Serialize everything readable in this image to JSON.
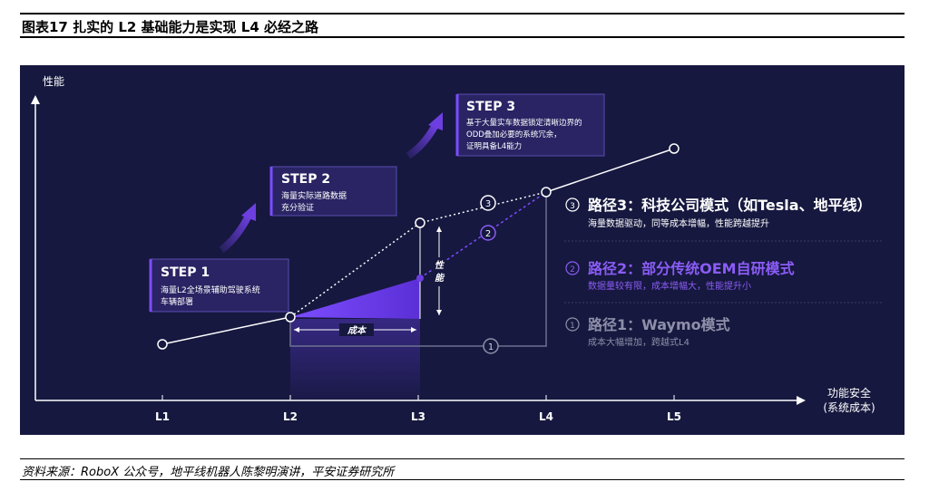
{
  "figure_title": "图表17   扎实的 L2 基础能力是实现 L4 必经之路",
  "source": "资料来源：RoboX 公众号，地平线机器人陈黎明演讲，平安证券研究所",
  "axes": {
    "y_label": "性能",
    "x_label_line1": "功能安全",
    "x_label_line2": "(系统成本)",
    "x_ticks": [
      "L1",
      "L2",
      "L3",
      "L4",
      "L5"
    ]
  },
  "steps": [
    {
      "title": "STEP 1",
      "lines": [
        "海量L2全场景辅助驾驶系统",
        "车辆部署"
      ]
    },
    {
      "title": "STEP 2",
      "lines": [
        "海量实际道路数据",
        "充分验证"
      ]
    },
    {
      "title": "STEP 3",
      "lines": [
        "基于大量实车数据锁定清晰边界的",
        "ODD叠加必要的系统冗余，",
        "证明具备L4能力"
      ]
    }
  ],
  "annotations": {
    "cost": "成本",
    "performance": "性能"
  },
  "path_markers": [
    "1",
    "2",
    "3"
  ],
  "paths": [
    {
      "num": "3",
      "title": "路径3：科技公司模式（如Tesla、地平线）",
      "desc": "海量数据驱动，同等成本增幅，性能跨越提升",
      "color": "#ffffff"
    },
    {
      "num": "2",
      "title": "路径2：部分传统OEM自研模式",
      "desc": "数据量较有限，成本增幅大，性能提升小",
      "color": "#8b5cf6"
    },
    {
      "num": "1",
      "title": "路径1：Waymo模式",
      "desc": "成本大幅增加，跨越式L4",
      "color": "#8e8fa8"
    }
  ],
  "colors": {
    "panel": "#16183f",
    "accent": "#6d3fe0",
    "white": "#ffffff"
  }
}
